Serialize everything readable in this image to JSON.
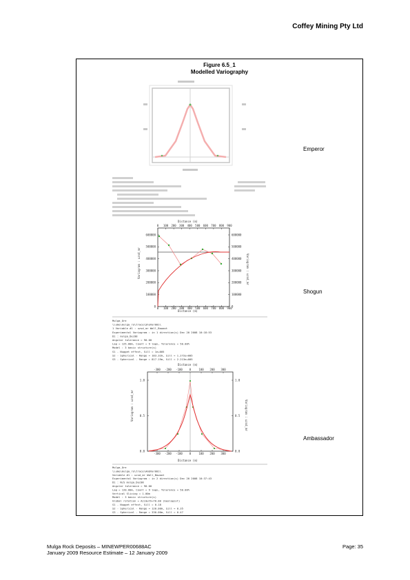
{
  "header": {
    "company": "Coffey Mining Pty Ltd"
  },
  "figure": {
    "number": "Figure 6.5_1",
    "title": "Modelled Variography"
  },
  "panels": [
    {
      "label": "Emperor"
    },
    {
      "label": "Shogun",
      "x_title": "Distance (m)",
      "y_title_left": "Variogram : uzsd_mr",
      "y_title_right": "Variogram : uzsd_mr",
      "x_ticks": [
        "0",
        "100",
        "200",
        "300",
        "400",
        "500",
        "600",
        "700",
        "800",
        "900"
      ],
      "y_ticks": [
        "0",
        "100000",
        "200000",
        "300000",
        "400000",
        "500000",
        "600000"
      ],
      "info": [
        "Mulga_Ore",
        "\\\\ume\\mulga_ro\\trace\\ShoVar001\\",
        "1 Variable #1 : uzsd_mr                                   Wall_Bowoot",
        "Experimental Variogram : in 1 direction(s)          Dec 20 2008   10:18:53",
        "D1  :                                                        mulga_Dec08",
        "     Angular tolerance =  90.00",
        "     Lag =  125.00m, Count = 9 lags, Tolerance = 50.00%",
        "Model : 3 basic structure(s)",
        "S1  - Nugget effect, Sill =      1e+005",
        "S2  - Spherical - Range = 183.32m, Sill = 1.272e+005",
        "S3  - Spherical - Range = 817.19m, Sill = 2.213e+005"
      ]
    },
    {
      "label": "Ambassador",
      "x_title": "Distance (m)",
      "y_title_left": "Variogram : uzsd_mr",
      "y_title_right": "Variogram : uzsd_mr",
      "x_ticks": [
        "-300",
        "-200",
        "-100",
        "0",
        "100",
        "200",
        "300"
      ],
      "y_ticks": [
        "0.0",
        "0.5",
        "1.0"
      ],
      "info": [
        "Mulga_Ore",
        "\\\\ume\\mulga_ro\\trace\\AmbVar001\\",
        "  Variable #1 : uzsd_mr                                   Wall_Bowoot",
        "Experimental Variogram : in 2 direction(s)          Dec 20 2008   10:37:43",
        "D1  : N/S                                                     mulga_Dec08",
        "     Angular tolerance =  90.00",
        "     Lag =  120.00m, Count = 9 lags, Tolerance = 50.00%",
        "     Vertical Slicing =   1.00m",
        "Model : 3 basic structure(s)",
        "Global rotation = Azimuth=70.00 (Geologist)",
        "S1  - Nugget effect, Sill =        0.18",
        "S2  - Spherical - Range = 120.00m, Sill =        0.35",
        "S3  - Spherical - Range = 330.00m, Sill =        0.47"
      ]
    }
  ],
  "footer": {
    "line1": "Mulga Rock Deposits – MINEWPER00688AC",
    "line2": "January 2009 Resource Estimate – 12 January 2009",
    "page": "Page:  35"
  }
}
